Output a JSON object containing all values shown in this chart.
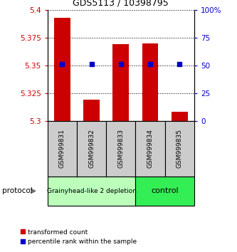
{
  "title": "GDS5113 / 10398795",
  "samples": [
    "GSM999831",
    "GSM999832",
    "GSM999833",
    "GSM999834",
    "GSM999835"
  ],
  "bar_values": [
    5.393,
    5.319,
    5.369,
    5.37,
    5.308
  ],
  "bar_base": 5.3,
  "percentile_left_y": [
    5.351,
    5.351,
    5.351,
    5.351,
    5.351
  ],
  "ylim": [
    5.3,
    5.4
  ],
  "y2lim": [
    0,
    100
  ],
  "yticks": [
    5.3,
    5.325,
    5.35,
    5.375,
    5.4
  ],
  "y2ticks": [
    0,
    25,
    50,
    75,
    100
  ],
  "bar_color": "#cc0000",
  "percentile_color": "#0000cc",
  "groups": [
    {
      "label": "Grainyhead-like 2 depletion",
      "indices": [
        0,
        1,
        2
      ],
      "color": "#bbffbb"
    },
    {
      "label": "control",
      "indices": [
        3,
        4
      ],
      "color": "#33ee55"
    }
  ],
  "group_label": "protocol",
  "figsize": [
    3.33,
    3.54
  ],
  "dpi": 100,
  "bar_width": 0.55,
  "legend_red_label": "transformed count",
  "legend_blue_label": "percentile rank within the sample",
  "tick_label_bg": "#cccccc"
}
